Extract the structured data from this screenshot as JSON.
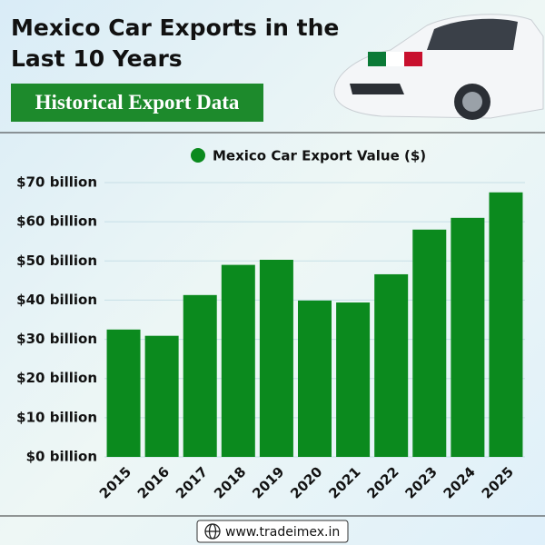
{
  "chart_data": {
    "type": "bar",
    "title": "Mexico Car Exports in the Last 10 Years",
    "subtitle": "Historical Export Data",
    "categories": [
      "2015",
      "2016",
      "2017",
      "2018",
      "2019",
      "2020",
      "2021",
      "2022",
      "2023",
      "2024",
      "2025"
    ],
    "series": [
      {
        "name": "Mexico Car Export Value ($)",
        "color": "#0b8a1e",
        "values": [
          32.5,
          30.9,
          41.3,
          49,
          50.3,
          39.9,
          39.4,
          46.6,
          58,
          61,
          67.5
        ]
      }
    ],
    "ylim": [
      0,
      70
    ],
    "yticks": [
      {
        "value": 0,
        "label": "$0 billion"
      },
      {
        "value": 10,
        "label": "$10 billion"
      },
      {
        "value": 20,
        "label": "$20 billion"
      },
      {
        "value": 30,
        "label": "$30 billion"
      },
      {
        "value": 40,
        "label": "$40 billion"
      },
      {
        "value": 50,
        "label": "$50 billion"
      },
      {
        "value": 60,
        "label": "$60 billion"
      },
      {
        "value": 70,
        "label": "$70 billion"
      }
    ],
    "grid": true,
    "footer": "www.tradeimex.in"
  }
}
